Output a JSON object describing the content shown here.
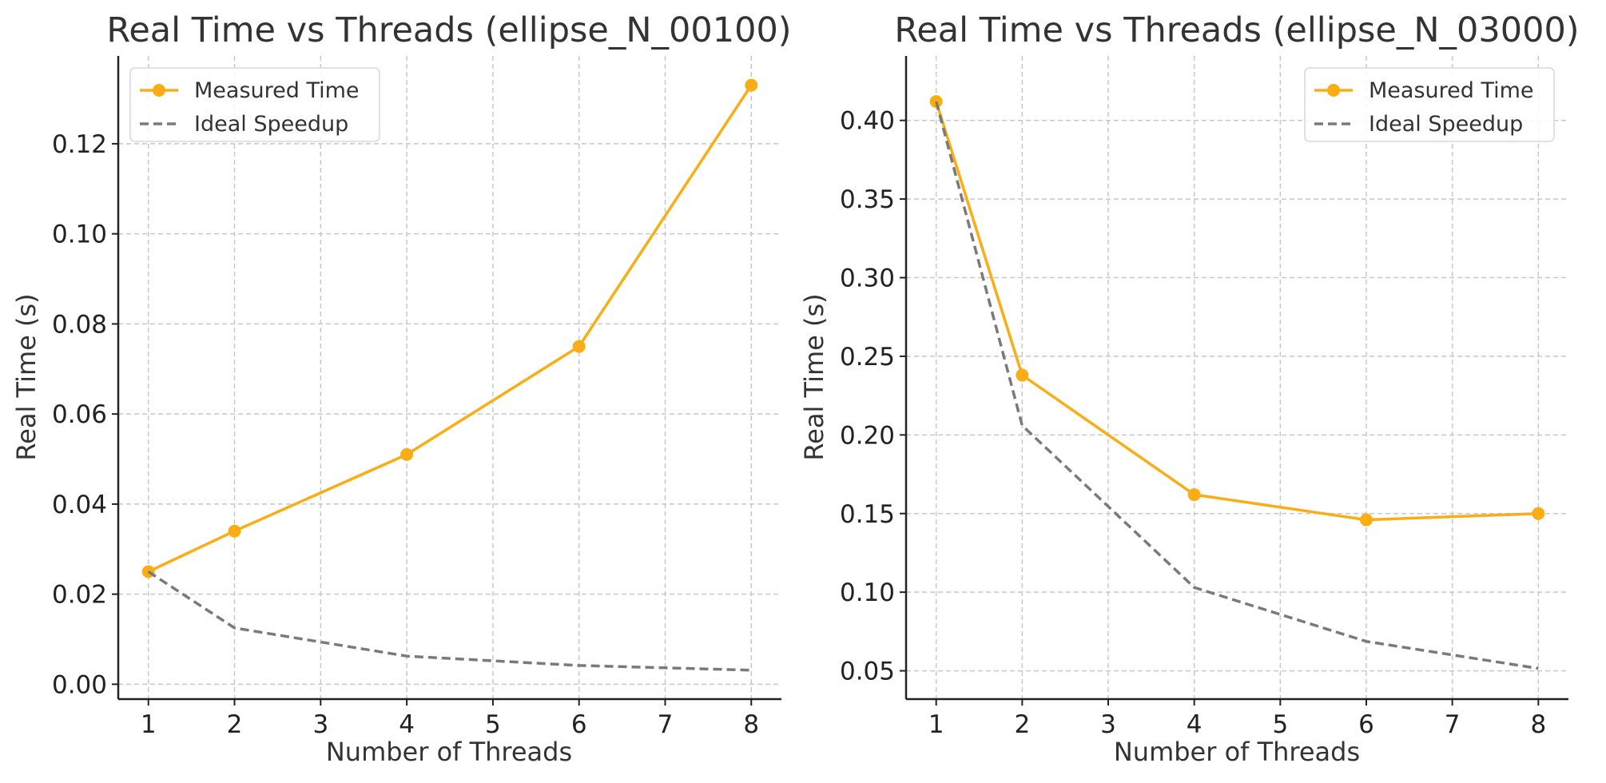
{
  "chart_data": [
    {
      "type": "line",
      "title": "Real Time vs Threads (ellipse_N_00100)",
      "xlabel": "Number of Threads",
      "ylabel": "Real Time (s)",
      "xlim": [
        0.65,
        8.35
      ],
      "ylim": [
        -0.0033,
        0.1395
      ],
      "xticks": [
        1,
        2,
        3,
        4,
        5,
        6,
        7,
        8
      ],
      "yticks": [
        0.0,
        0.02,
        0.04,
        0.06,
        0.08,
        0.1,
        0.12
      ],
      "yticklabels": [
        "0.00",
        "0.02",
        "0.04",
        "0.06",
        "0.08",
        "0.10",
        "0.12"
      ],
      "grid": true,
      "legend_position": "top-left",
      "series": [
        {
          "name": "Measured Time",
          "style": "solid-marker",
          "color": "#FAAD14",
          "x": [
            1,
            2,
            4,
            6,
            8
          ],
          "y": [
            0.025,
            0.034,
            0.051,
            0.075,
            0.133
          ]
        },
        {
          "name": "Ideal Speedup",
          "style": "dashed",
          "color": "#7A7A7A",
          "x": [
            1,
            2,
            4,
            6,
            8
          ],
          "y": [
            0.025,
            0.0125,
            0.00625,
            0.00417,
            0.003125
          ]
        }
      ]
    },
    {
      "type": "line",
      "title": "Real Time vs Threads (ellipse_N_03000)",
      "xlabel": "Number of Threads",
      "ylabel": "Real Time (s)",
      "xlim": [
        0.65,
        8.35
      ],
      "ylim": [
        0.032,
        0.441
      ],
      "xticks": [
        1,
        2,
        3,
        4,
        5,
        6,
        7,
        8
      ],
      "yticks": [
        0.05,
        0.1,
        0.15,
        0.2,
        0.25,
        0.3,
        0.35,
        0.4
      ],
      "yticklabels": [
        "0.05",
        "0.10",
        "0.15",
        "0.20",
        "0.25",
        "0.30",
        "0.35",
        "0.40"
      ],
      "grid": true,
      "legend_position": "top-right",
      "series": [
        {
          "name": "Measured Time",
          "style": "solid-marker",
          "color": "#FAAD14",
          "x": [
            1,
            2,
            4,
            6,
            8
          ],
          "y": [
            0.412,
            0.238,
            0.162,
            0.146,
            0.15
          ]
        },
        {
          "name": "Ideal Speedup",
          "style": "dashed",
          "color": "#7A7A7A",
          "x": [
            1,
            2,
            4,
            6,
            8
          ],
          "y": [
            0.412,
            0.206,
            0.103,
            0.0687,
            0.0515
          ]
        }
      ]
    }
  ]
}
